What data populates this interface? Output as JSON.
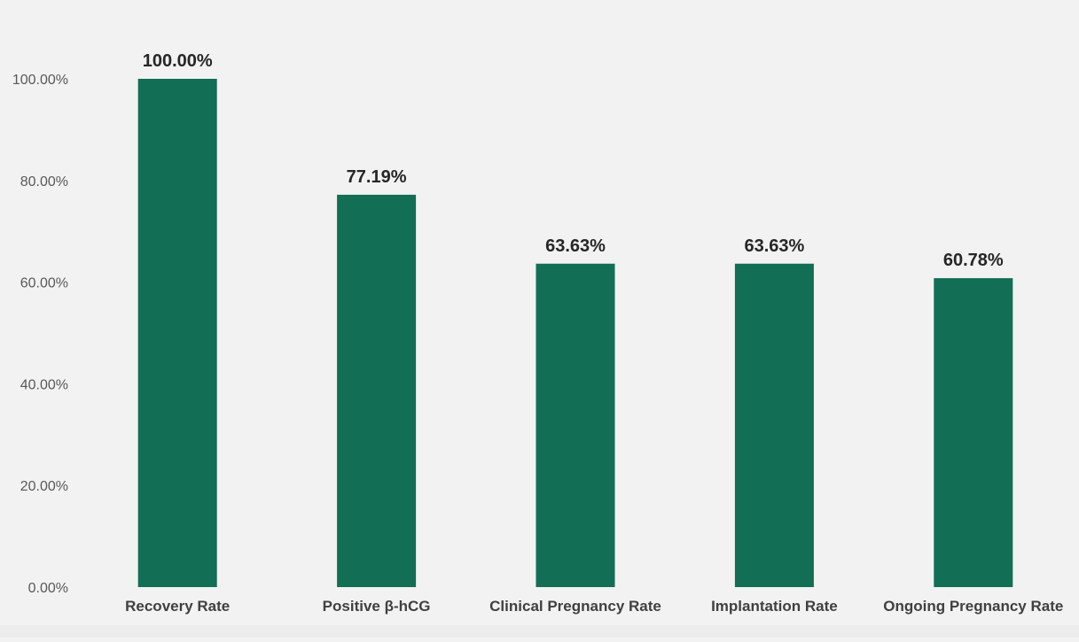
{
  "chart_data": {
    "type": "bar",
    "categories": [
      "Recovery Rate",
      "Positive β-hCG",
      "Clinical Pregnancy Rate",
      "Implantation Rate",
      "Ongoing Pregnancy Rate"
    ],
    "values": [
      100.0,
      77.19,
      63.63,
      63.63,
      60.78
    ],
    "data_labels": [
      "100.00%",
      "77.19%",
      "63.63%",
      "63.63%",
      "60.78%"
    ],
    "yticks": [
      0,
      20,
      40,
      60,
      80,
      100
    ],
    "ytick_labels": [
      "0.00%",
      "20.00%",
      "40.00%",
      "60.00%",
      "80.00%",
      "100.00%"
    ],
    "ylim": [
      0,
      100
    ],
    "title": "",
    "xlabel": "",
    "ylabel": "",
    "grid": false,
    "legend": "none",
    "bar_color": "#126e54",
    "background": "#f2f2f2"
  }
}
